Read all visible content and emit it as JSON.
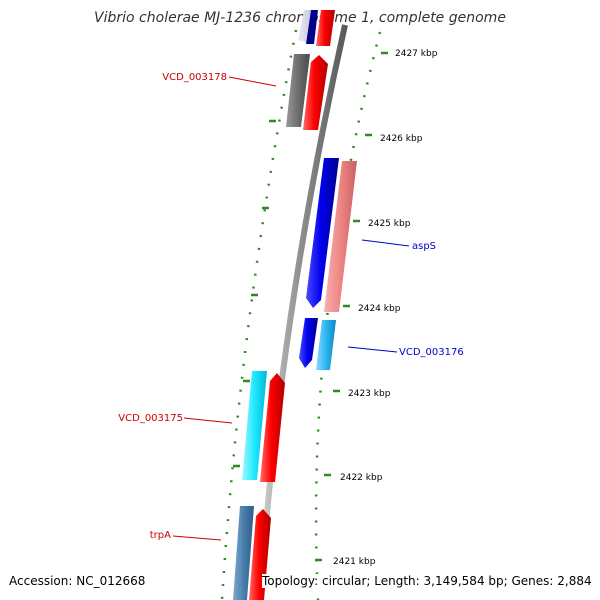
{
  "title": "Vibrio cholerae MJ-1236 chromosome 1, complete genome",
  "footer": {
    "accession": "Accession: NC_012668",
    "summary": "Topology: circular; Length: 3,149,584 bp; Genes: 2,884"
  },
  "colors": {
    "backbone": "#8c8c8c",
    "tick": "#2e8b22",
    "forward_label": "#cc0000",
    "reverse_label": "#0000cc"
  },
  "ticks": [
    "2427 kbp",
    "2426 kbp",
    "2425 kbp",
    "2424 kbp",
    "2423 kbp",
    "2422 kbp",
    "2421 kbp"
  ],
  "genes": [
    {
      "label": "VCD_003178",
      "strand": "forward",
      "color": "#cc0000"
    },
    {
      "label": "aspS",
      "strand": "reverse",
      "color": "#0000cc"
    },
    {
      "label": "VCD_003176",
      "strand": "reverse",
      "color": "#0000cc"
    },
    {
      "label": "VCD_003175",
      "strand": "forward",
      "color": "#cc0000"
    },
    {
      "label": "trpA",
      "strand": "forward",
      "color": "#cc0000"
    }
  ]
}
